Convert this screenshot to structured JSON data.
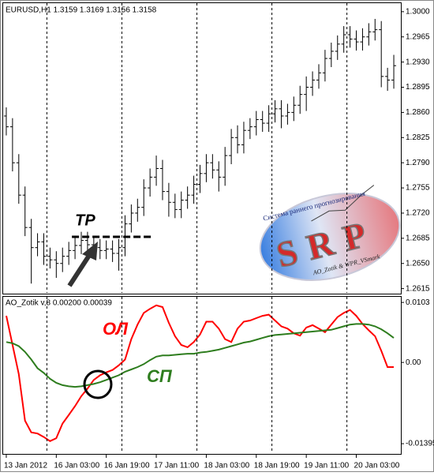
{
  "chart_data": [
    {
      "type": "ohlc",
      "title": "EURUSD,H1  1.3159 1.3169 1.3156 1.3158",
      "color": "#000000",
      "open": [
        1.2855,
        1.284,
        1.279,
        1.2745,
        1.27,
        1.2672,
        1.268,
        1.266,
        1.2655,
        1.265,
        1.266,
        1.2668,
        1.2675,
        1.2682,
        1.2676,
        1.2672,
        1.2668,
        1.267,
        1.2664,
        1.2672,
        1.2705,
        1.272,
        1.2728,
        1.2755,
        1.277,
        1.2782,
        1.275,
        1.2735,
        1.2725,
        1.2738,
        1.2745,
        1.276,
        1.2775,
        1.279,
        1.278,
        1.277,
        1.28,
        1.2825,
        1.2815,
        1.2835,
        1.284,
        1.285,
        1.2845,
        1.2858,
        1.2865,
        1.2855,
        1.286,
        1.287,
        1.2885,
        1.2895,
        1.2905,
        1.2915,
        1.2935,
        1.2945,
        1.2955,
        1.2968,
        1.2962,
        1.2958,
        1.2965,
        1.2972,
        1.2975,
        1.291,
        1.2905
      ],
      "high": [
        1.2867,
        1.2852,
        1.2802,
        1.2757,
        1.2712,
        1.2692,
        1.2692,
        1.2672,
        1.2667,
        1.2672,
        1.268,
        1.2687,
        1.2694,
        1.2694,
        1.2688,
        1.2684,
        1.2682,
        1.2682,
        1.2684,
        1.2717,
        1.2732,
        1.274,
        1.2767,
        1.2782,
        1.28,
        1.2794,
        1.2762,
        1.2747,
        1.275,
        1.2757,
        1.2772,
        1.2787,
        1.2802,
        1.2802,
        1.2792,
        1.2812,
        1.2837,
        1.2842,
        1.2847,
        1.2852,
        1.2862,
        1.2862,
        1.287,
        1.2877,
        1.2877,
        1.2872,
        1.2882,
        1.2897,
        1.291,
        1.2917,
        1.2927,
        1.2947,
        1.2957,
        1.2967,
        1.298,
        1.298,
        1.2974,
        1.2977,
        1.2984,
        1.299,
        1.2987,
        1.2922,
        1.294
      ],
      "low": [
        1.2828,
        1.2778,
        1.2733,
        1.2688,
        1.2622,
        1.266,
        1.2648,
        1.2643,
        1.263,
        1.2638,
        1.2648,
        1.2656,
        1.2663,
        1.2664,
        1.266,
        1.2656,
        1.2656,
        1.2652,
        1.264,
        1.266,
        1.2693,
        1.2708,
        1.2716,
        1.2743,
        1.2758,
        1.2738,
        1.2715,
        1.2713,
        1.2713,
        1.2726,
        1.2733,
        1.2748,
        1.2763,
        1.2768,
        1.275,
        1.2758,
        1.2788,
        1.2803,
        1.2803,
        1.2823,
        1.2828,
        1.2833,
        1.2833,
        1.2846,
        1.2838,
        1.2843,
        1.2848,
        1.2858,
        1.2862,
        1.2883,
        1.2893,
        1.2903,
        1.2923,
        1.2933,
        1.2943,
        1.295,
        1.2946,
        1.2946,
        1.2953,
        1.296,
        1.2895,
        1.289,
        1.2893
      ],
      "close": [
        1.284,
        1.279,
        1.2745,
        1.27,
        1.2672,
        1.268,
        1.266,
        1.2655,
        1.265,
        1.266,
        1.2668,
        1.2675,
        1.2682,
        1.2676,
        1.2672,
        1.2668,
        1.267,
        1.2664,
        1.2672,
        1.2705,
        1.272,
        1.2728,
        1.2755,
        1.277,
        1.2782,
        1.275,
        1.2735,
        1.2725,
        1.2738,
        1.2745,
        1.276,
        1.2775,
        1.279,
        1.278,
        1.277,
        1.28,
        1.2825,
        1.2815,
        1.2835,
        1.284,
        1.285,
        1.2845,
        1.2858,
        1.2865,
        1.2855,
        1.286,
        1.287,
        1.2885,
        1.2895,
        1.2905,
        1.2915,
        1.2935,
        1.2945,
        1.2955,
        1.2968,
        1.2962,
        1.2958,
        1.2965,
        1.2972,
        1.2975,
        1.291,
        1.2905,
        1.2925
      ],
      "xlim": [
        -0.5,
        62.5
      ],
      "ylim": [
        1.2608,
        1.3013
      ],
      "yticks": [
        {
          "value": 1.3,
          "label": "1.3000"
        },
        1.2965,
        {
          "value": 1.293,
          "label": "1.2930"
        },
        1.2895,
        {
          "value": 1.286,
          "label": "1.2860"
        },
        1.2825,
        {
          "value": 1.279,
          "label": "1.2790"
        },
        1.2755,
        {
          "value": 1.272,
          "label": "1.2720"
        },
        1.2685,
        {
          "value": 1.265,
          "label": "1.2650"
        },
        1.2615
      ],
      "separators": [
        6.5,
        18.5,
        30.5,
        42.5,
        54.5
      ],
      "tp": {
        "label": "TP",
        "value": 1.2687,
        "x": [
          10.5,
          23.5
        ]
      }
    },
    {
      "type": "line",
      "title": "AO_Zotik v,8 0.00200 0.00039",
      "xlim": [
        -0.5,
        62.5
      ],
      "ylim": [
        -0.0157,
        0.0114
      ],
      "yticks": [
        0.0103,
        {
          "value": 0,
          "label": "0.00"
        },
        -0.01395
      ],
      "xticks": [
        {
          "value": 0,
          "label": "13 Jan 2012"
        },
        {
          "value": 8,
          "label": "16 Jan 03:00"
        },
        {
          "value": 16,
          "label": "16 Jan 19:00"
        },
        {
          "value": 24,
          "label": "17 Jan 11:00"
        },
        {
          "value": 32,
          "label": "18 Jan 03:00"
        },
        {
          "value": 40,
          "label": "18 Jan 19:00"
        },
        {
          "value": 48,
          "label": "19 Jan 11:00"
        },
        {
          "value": 56,
          "label": "20 Jan 03:00"
        }
      ],
      "series": [
        {
          "name": "ОЛ",
          "color": "#ff0000",
          "values": [
            0.008,
            0.003,
            -0.002,
            -0.01,
            -0.012,
            -0.0122,
            -0.0128,
            -0.0135,
            -0.013,
            -0.0105,
            -0.009,
            -0.0075,
            -0.0058,
            -0.0045,
            -0.003,
            -0.0022,
            -0.0017,
            -0.0013,
            -0.0005,
            0.0005,
            0.004,
            0.0065,
            0.0085,
            0.0092,
            0.0098,
            0.0095,
            0.0068,
            0.0045,
            0.003,
            0.0026,
            0.0035,
            0.0048,
            0.007,
            0.007,
            0.0058,
            0.004,
            0.0035,
            0.0058,
            0.007,
            0.0072,
            0.0076,
            0.008,
            0.0082,
            0.0072,
            0.0062,
            0.0058,
            0.005,
            0.0046,
            0.006,
            0.0064,
            0.0058,
            0.0052,
            0.0065,
            0.0078,
            0.0085,
            0.009,
            0.008,
            0.0066,
            0.0055,
            0.0045,
            0.002,
            -0.0008,
            -0.0008
          ]
        },
        {
          "name": "СП",
          "color": "#2e7d1e",
          "values": [
            0.0035,
            0.0033,
            0.0028,
            0.0018,
            0.0005,
            -0.001,
            -0.0018,
            -0.0028,
            -0.0035,
            -0.0039,
            -0.0041,
            -0.0042,
            -0.0041,
            -0.0039,
            -0.0037,
            -0.0034,
            -0.003,
            -0.0026,
            -0.0022,
            -0.0016,
            -0.0012,
            -0.0008,
            -0.0003,
            0.0004,
            0.001,
            0.0012,
            0.0012,
            0.0013,
            0.0014,
            0.0015,
            0.0015,
            0.0017,
            0.0018,
            0.002,
            0.0022,
            0.0025,
            0.0028,
            0.0031,
            0.0034,
            0.0036,
            0.0039,
            0.0042,
            0.0045,
            0.0047,
            0.0048,
            0.0049,
            0.005,
            0.0051,
            0.0052,
            0.0053,
            0.0054,
            0.0055,
            0.0056,
            0.0059,
            0.0062,
            0.0065,
            0.0066,
            0.0066,
            0.0065,
            0.0062,
            0.0057,
            0.005,
            0.0042
          ]
        }
      ]
    }
  ],
  "logo": {
    "title": "SRP",
    "arc": "Система раннего прогнозирования",
    "footer": "AO_Zotik & WPR_VSmark"
  }
}
